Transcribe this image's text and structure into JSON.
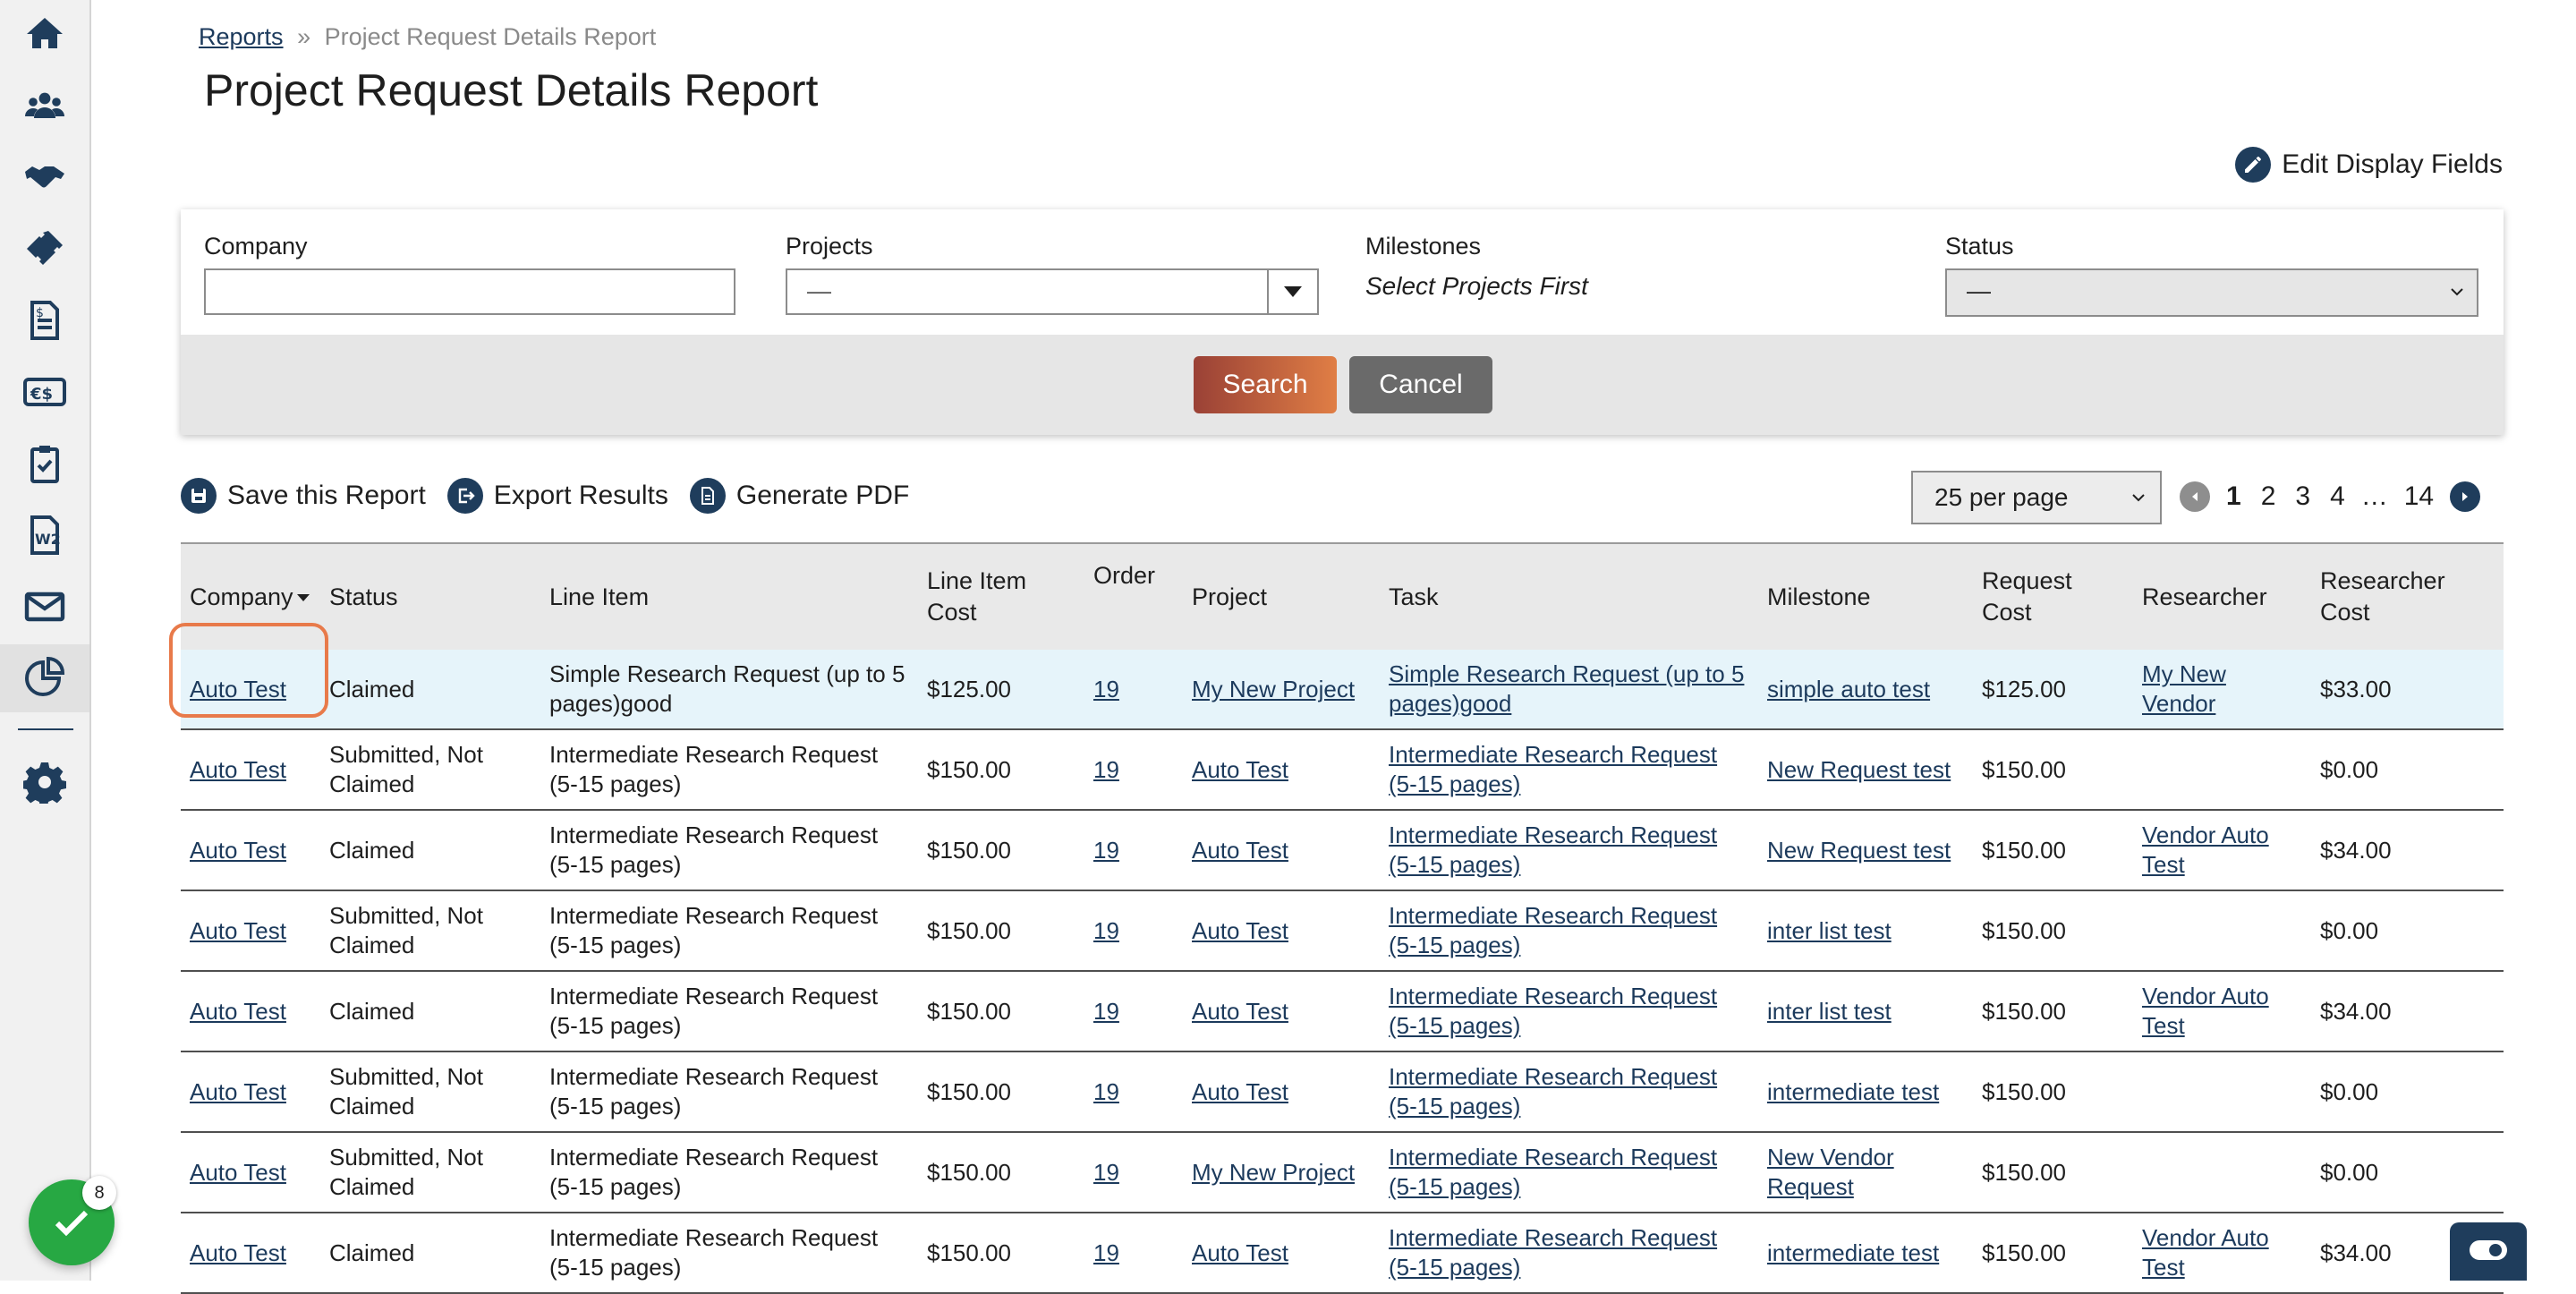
{
  "breadcrumb": {
    "root": "Reports",
    "separator": "»",
    "current": "Project Request Details Report"
  },
  "page": {
    "title": "Project Request Details Report",
    "edit_display_fields": "Edit Display Fields"
  },
  "sidebar": {
    "items": [
      {
        "icon": "home-icon"
      },
      {
        "icon": "people-icon"
      },
      {
        "icon": "handshake-icon"
      },
      {
        "icon": "ticket-icon"
      },
      {
        "icon": "invoice-icon"
      },
      {
        "icon": "currency-exchange-icon"
      },
      {
        "icon": "clipboard-check-icon"
      },
      {
        "icon": "w2-form-icon"
      },
      {
        "icon": "mail-icon"
      },
      {
        "icon": "reports-icon",
        "selected": true
      },
      {
        "icon": "gear-icon"
      }
    ],
    "accent_color": "#1f3d5c"
  },
  "filters": {
    "company_label": "Company",
    "company_value": "",
    "projects_label": "Projects",
    "projects_value": "—",
    "milestones_label": "Milestones",
    "milestones_hint": "Select Projects First",
    "status_label": "Status",
    "status_value": "—",
    "search_label": "Search",
    "cancel_label": "Cancel"
  },
  "toolbar": {
    "save_label": "Save this Report",
    "export_label": "Export Results",
    "pdf_label": "Generate PDF"
  },
  "pagination": {
    "per_page": "25 per page",
    "pages": [
      "1",
      "2",
      "3",
      "4"
    ],
    "ellipsis": "…",
    "last": "14",
    "current": "1"
  },
  "table": {
    "headers": {
      "company": "Company",
      "status": "Status",
      "line_item": "Line Item",
      "line_item_cost": "Line Item Cost",
      "order": "Order",
      "project": "Project",
      "task": "Task",
      "milestone": "Milestone",
      "request_cost": "Request Cost",
      "researcher": "Researcher",
      "researcher_cost": "Researcher Cost"
    },
    "rows": [
      {
        "company": "Auto Test",
        "status": "Claimed",
        "line_item": "Simple Research Request (up to 5 pages)good",
        "line_item_cost": "$125.00",
        "order": "19",
        "project": "My New Project",
        "task": "Simple Research Request (up to 5 pages)good",
        "milestone": "simple auto test",
        "request_cost": "$125.00",
        "researcher": "My New Vendor",
        "researcher_cost": "$33.00"
      },
      {
        "company": "Auto Test",
        "status": "Submitted, Not Claimed",
        "line_item": "Intermediate Research Request (5-15 pages)",
        "line_item_cost": "$150.00",
        "order": "19",
        "project": "Auto Test",
        "task": "Intermediate Research Request (5-15 pages)",
        "milestone": "New Request test",
        "request_cost": "$150.00",
        "researcher": "",
        "researcher_cost": "$0.00"
      },
      {
        "company": "Auto Test",
        "status": "Claimed",
        "line_item": "Intermediate Research Request (5-15 pages)",
        "line_item_cost": "$150.00",
        "order": "19",
        "project": "Auto Test",
        "task": "Intermediate Research Request (5-15 pages)",
        "milestone": "New Request test",
        "request_cost": "$150.00",
        "researcher": "Vendor Auto Test",
        "researcher_cost": "$34.00"
      },
      {
        "company": "Auto Test",
        "status": "Submitted, Not Claimed",
        "line_item": "Intermediate Research Request (5-15 pages)",
        "line_item_cost": "$150.00",
        "order": "19",
        "project": "Auto Test",
        "task": "Intermediate Research Request (5-15 pages)",
        "milestone": "inter list test",
        "request_cost": "$150.00",
        "researcher": "",
        "researcher_cost": "$0.00"
      },
      {
        "company": "Auto Test",
        "status": "Claimed",
        "line_item": "Intermediate Research Request (5-15 pages)",
        "line_item_cost": "$150.00",
        "order": "19",
        "project": "Auto Test",
        "task": "Intermediate Research Request (5-15 pages)",
        "milestone": "inter list test",
        "request_cost": "$150.00",
        "researcher": "Vendor Auto Test",
        "researcher_cost": "$34.00"
      },
      {
        "company": "Auto Test",
        "status": "Submitted, Not Claimed",
        "line_item": "Intermediate Research Request (5-15 pages)",
        "line_item_cost": "$150.00",
        "order": "19",
        "project": "Auto Test",
        "task": "Intermediate Research Request (5-15 pages)",
        "milestone": "intermediate test",
        "request_cost": "$150.00",
        "researcher": "",
        "researcher_cost": "$0.00"
      },
      {
        "company": "Auto Test",
        "status": "Submitted, Not Claimed",
        "line_item": "Intermediate Research Request (5-15 pages)",
        "line_item_cost": "$150.00",
        "order": "19",
        "project": "My New Project",
        "task": "Intermediate Research Request (5-15 pages)",
        "milestone": "New Vendor Request",
        "request_cost": "$150.00",
        "researcher": "",
        "researcher_cost": "$0.00"
      },
      {
        "company": "Auto Test",
        "status": "Claimed",
        "line_item": "Intermediate Research Request (5-15 pages)",
        "line_item_cost": "$150.00",
        "order": "19",
        "project": "Auto Test",
        "task": "Intermediate Research Request (5-15 pages)",
        "milestone": "intermediate test",
        "request_cost": "$150.00",
        "researcher": "Vendor Auto Test",
        "researcher_cost": "$34.00"
      }
    ]
  },
  "notifications": {
    "count": "8",
    "color": "#27a843"
  },
  "highlight_color": "#e87a4a"
}
